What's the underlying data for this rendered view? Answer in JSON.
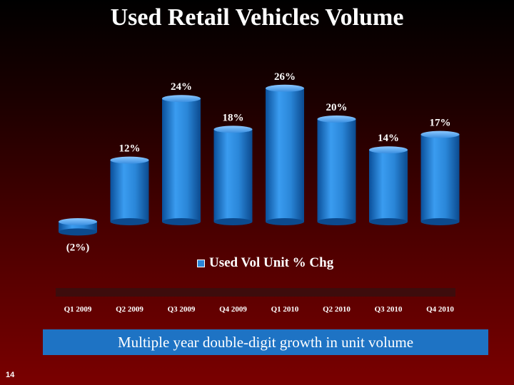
{
  "slide": {
    "title": "Used Retail Vehicles Volume",
    "callout": "Multiple year double-digit growth in unit volume",
    "page_number": "14"
  },
  "chart_data": {
    "type": "bar",
    "title": "",
    "xlabel": "",
    "ylabel": "",
    "categories": [
      "Q1 2009",
      "Q2 2009",
      "Q3 2009",
      "Q4 2009",
      "Q1 2010",
      "Q2 2010",
      "Q3 2010",
      "Q4 2010"
    ],
    "series": [
      {
        "name": "Used Vol Unit % Chg",
        "values": [
          -2,
          12,
          24,
          18,
          26,
          20,
          14,
          17
        ],
        "labels": [
          "(2%)",
          "12%",
          "24%",
          "18%",
          "26%",
          "20%",
          "14%",
          "17%"
        ],
        "color": "#2a86d8"
      }
    ],
    "legend": "bottom-center",
    "grid": false
  }
}
